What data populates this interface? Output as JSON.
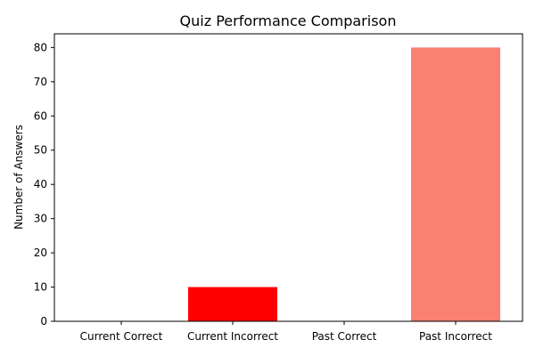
{
  "chart_data": {
    "type": "bar",
    "title": "Quiz Performance Comparison",
    "xlabel": "",
    "ylabel": "Number of Answers",
    "categories": [
      "Current Correct",
      "Current Incorrect",
      "Past Correct",
      "Past Incorrect"
    ],
    "values": [
      0,
      10,
      0,
      80
    ],
    "colors": [
      "#008000",
      "#ff0000",
      "#90ee90",
      "#fa8072"
    ],
    "ylim": [
      0,
      84
    ],
    "yticks": [
      0,
      10,
      20,
      30,
      40,
      50,
      60,
      70,
      80
    ],
    "grid": false,
    "legend": "none"
  }
}
